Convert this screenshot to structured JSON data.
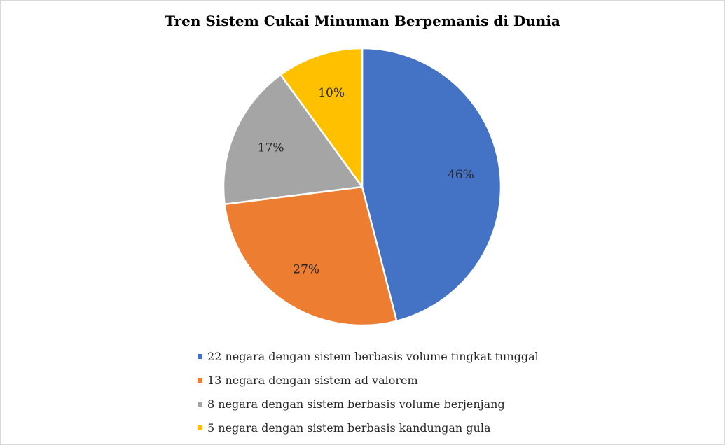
{
  "chart_data": {
    "type": "pie",
    "title": "Tren Sistem Cukai Minuman Berpemanis di Dunia",
    "legend_position": "bottom",
    "slices": [
      {
        "label": "22 negara dengan sistem berbasis volume tingkat tunggal",
        "value": 46,
        "display": "46%",
        "color": "#4472C4"
      },
      {
        "label": "13 negara dengan sistem ad valorem",
        "value": 27,
        "display": "27%",
        "color": "#ED7D31"
      },
      {
        "label": "8 negara dengan sistem berbasis volume berjenjang",
        "value": 17,
        "display": "17%",
        "color": "#A5A5A5"
      },
      {
        "label": "5 negara dengan sistem berbasis kandungan gula",
        "value": 10,
        "display": "10%",
        "color": "#FFC000"
      }
    ]
  }
}
